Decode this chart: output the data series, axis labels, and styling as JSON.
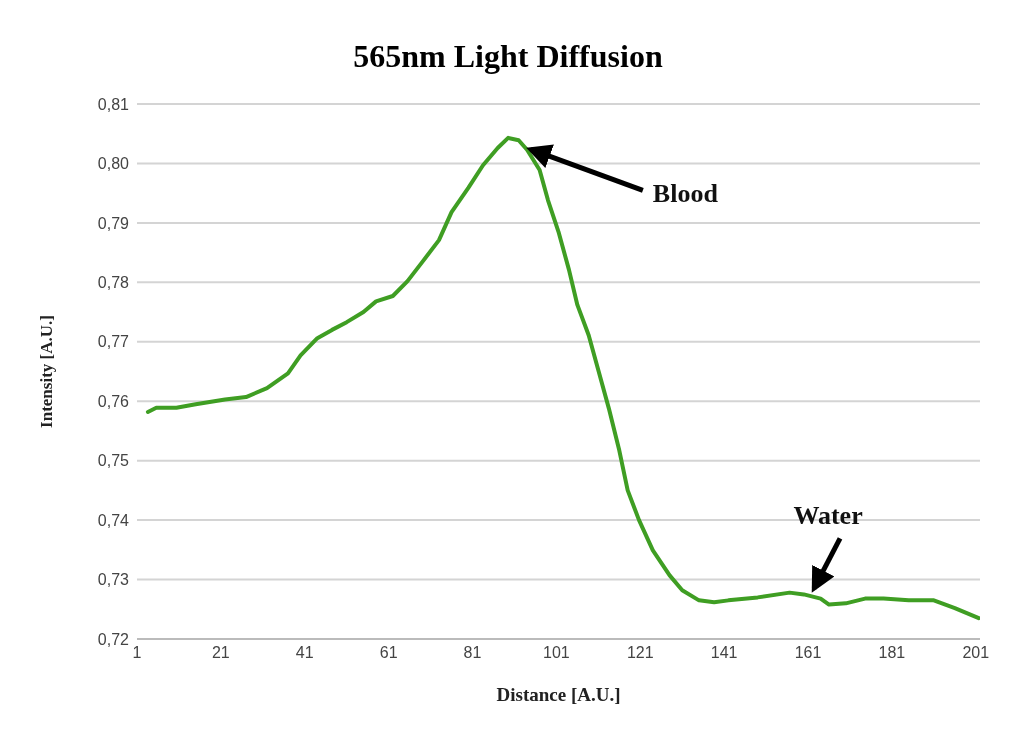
{
  "chart_data": {
    "type": "line",
    "title": "565nm Light Diffusion",
    "xlabel": "Distance [A.U.]",
    "ylabel": "Intensity  [A.U.]",
    "x": [
      3.6,
      5.6,
      10.4,
      15,
      22,
      27,
      32,
      37,
      40,
      44,
      47.5,
      51,
      55,
      58,
      62,
      65.5,
      69,
      73,
      76,
      80,
      83.5,
      87,
      89.5,
      92,
      94,
      97,
      99,
      101.5,
      104,
      106,
      108.7,
      111,
      113.5,
      116,
      118,
      120.7,
      124,
      128,
      131,
      135,
      138.6,
      142,
      149,
      156.6,
      160,
      164,
      166,
      170,
      174.6,
      179,
      185,
      191,
      196,
      201.7
    ],
    "series": [
      {
        "color": "#3f9e23",
        "values": [
          0.7582,
          0.7589,
          0.7589,
          0.7595,
          0.7603,
          0.7607,
          0.7622,
          0.7647,
          0.7677,
          0.7706,
          0.772,
          0.7733,
          0.775,
          0.7768,
          0.7777,
          0.7802,
          0.7834,
          0.7871,
          0.7918,
          0.7959,
          0.7997,
          0.8026,
          0.8043,
          0.8039,
          0.8023,
          0.7989,
          0.7938,
          0.7885,
          0.7821,
          0.7762,
          0.7711,
          0.7652,
          0.7588,
          0.7517,
          0.745,
          0.74,
          0.7349,
          0.7307,
          0.7282,
          0.7265,
          0.7262,
          0.7265,
          0.727,
          0.7278,
          0.7275,
          0.7268,
          0.7258,
          0.726,
          0.7268,
          0.7268,
          0.7265,
          0.7265,
          0.7252,
          0.7235
        ]
      }
    ],
    "xlim": [
      1,
      202
    ],
    "xticks": [
      1,
      21,
      41,
      61,
      81,
      101,
      121,
      141,
      161,
      181,
      201
    ],
    "ylim": [
      0.72,
      0.81
    ],
    "yticks": [
      {
        "value": 0.72,
        "label": "0,72"
      },
      {
        "value": 0.73,
        "label": "0,73"
      },
      {
        "value": 0.74,
        "label": "0,74"
      },
      {
        "value": 0.75,
        "label": "0,75"
      },
      {
        "value": 0.76,
        "label": "0,76"
      },
      {
        "value": 0.77,
        "label": "0,77"
      },
      {
        "value": 0.78,
        "label": "0,78"
      },
      {
        "value": 0.79,
        "label": "0,79"
      },
      {
        "value": 0.8,
        "label": "0,80"
      },
      {
        "value": 0.81,
        "label": "0,81"
      }
    ],
    "grid": "y",
    "marker": "none",
    "line_style": "solid",
    "annotations": [
      {
        "text": "Blood",
        "x": 93,
        "y": 0.8027
      },
      {
        "text": "Water",
        "x": 161,
        "y": 0.7275
      }
    ]
  }
}
